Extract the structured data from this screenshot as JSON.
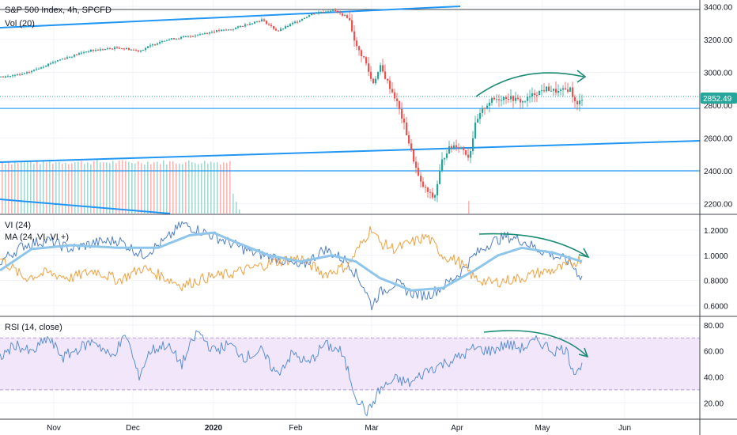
{
  "legend": {
    "main": "S&P 500 Index, 4h, SPCFD",
    "vol": "Vol (20)",
    "vi": "VI (24)",
    "ma": "MA (24, VI, VI +)",
    "rsi": "RSI (14, close)"
  },
  "last_price": "2852.49",
  "colors": {
    "up": "#26a69a",
    "down": "#ef5350",
    "trendline": "#2196f3",
    "annotation": "#1b8a73",
    "vi_plus": "#4f7fd0",
    "vi_minus": "#f2a03d",
    "ma": "#8ec5ea",
    "rsi": "#5b8fd6",
    "rsi_band": "#f2e6fb",
    "price_tag": "#26a69a"
  },
  "chart_data": [
    {
      "type": "candlestick",
      "name": "price",
      "ylim": [
        2140,
        3440
      ],
      "ticks": [
        "3400.00",
        "3200.00",
        "3000.00",
        "2800.00",
        "2600.00",
        "2400.00",
        "2200.00"
      ],
      "tick_values": [
        3400,
        3200,
        3000,
        2800,
        2600,
        2400,
        2200
      ],
      "x_labels": [
        "Nov",
        "Dec",
        "2020",
        "Feb",
        "Mar",
        "Apr",
        "May",
        "Jun"
      ],
      "anchors": [
        [
          0,
          2970
        ],
        [
          30,
          2990
        ],
        [
          70,
          3070
        ],
        [
          110,
          3130
        ],
        [
          150,
          3150
        ],
        [
          175,
          3130
        ],
        [
          205,
          3195
        ],
        [
          240,
          3220
        ],
        [
          270,
          3250
        ],
        [
          290,
          3260
        ],
        [
          310,
          3290
        ],
        [
          330,
          3320
        ],
        [
          350,
          3250
        ],
        [
          370,
          3300
        ],
        [
          395,
          3360
        ],
        [
          420,
          3380
        ],
        [
          440,
          3330
        ],
        [
          450,
          3150
        ],
        [
          460,
          3080
        ],
        [
          470,
          2930
        ],
        [
          480,
          3030
        ],
        [
          490,
          2930
        ],
        [
          500,
          2830
        ],
        [
          510,
          2680
        ],
        [
          520,
          2500
        ],
        [
          530,
          2330
        ],
        [
          540,
          2270
        ],
        [
          548,
          2230
        ],
        [
          558,
          2460
        ],
        [
          565,
          2530
        ],
        [
          575,
          2560
        ],
        [
          585,
          2530
        ],
        [
          592,
          2480
        ],
        [
          600,
          2680
        ],
        [
          610,
          2780
        ],
        [
          620,
          2830
        ],
        [
          640,
          2850
        ],
        [
          660,
          2820
        ],
        [
          675,
          2870
        ],
        [
          690,
          2900
        ],
        [
          705,
          2880
        ],
        [
          720,
          2900
        ],
        [
          728,
          2790
        ],
        [
          736,
          2852
        ]
      ],
      "volume_bars": {
        "ylim": [
          0,
          30
        ],
        "profile": [
          [
            0,
            22
          ],
          [
            290,
            22
          ],
          [
            300,
            4
          ]
        ]
      }
    },
    {
      "type": "line",
      "name": "vortex-indicator",
      "ylim": [
        0.52,
        1.32
      ],
      "ticks": [
        "1.2000",
        "1.0000",
        "0.8000",
        "0.6000"
      ],
      "tick_values": [
        1.2,
        1.0,
        0.8,
        0.6
      ],
      "series": [
        {
          "key": "vi_plus",
          "anchors": [
            [
              0,
              0.95
            ],
            [
              30,
              1.08
            ],
            [
              60,
              1.12
            ],
            [
              90,
              1.05
            ],
            [
              120,
              1.1
            ],
            [
              150,
              1.12
            ],
            [
              180,
              1.0
            ],
            [
              210,
              1.12
            ],
            [
              230,
              1.25
            ],
            [
              260,
              1.18
            ],
            [
              290,
              1.1
            ],
            [
              320,
              1.02
            ],
            [
              350,
              0.98
            ],
            [
              380,
              0.9
            ],
            [
              410,
              1.05
            ],
            [
              440,
              0.95
            ],
            [
              460,
              0.75
            ],
            [
              470,
              0.6
            ],
            [
              480,
              0.7
            ],
            [
              500,
              0.78
            ],
            [
              520,
              0.7
            ],
            [
              540,
              0.68
            ],
            [
              560,
              0.75
            ],
            [
              580,
              0.85
            ],
            [
              600,
              1.0
            ],
            [
              620,
              1.1
            ],
            [
              640,
              1.15
            ],
            [
              660,
              1.12
            ],
            [
              680,
              1.05
            ],
            [
              700,
              1.0
            ],
            [
              720,
              0.95
            ],
            [
              736,
              0.82
            ]
          ]
        },
        {
          "key": "vi_minus",
          "anchors": [
            [
              0,
              0.98
            ],
            [
              30,
              0.82
            ],
            [
              60,
              0.86
            ],
            [
              90,
              0.82
            ],
            [
              120,
              0.88
            ],
            [
              150,
              0.8
            ],
            [
              180,
              0.9
            ],
            [
              210,
              0.82
            ],
            [
              230,
              0.76
            ],
            [
              260,
              0.82
            ],
            [
              290,
              0.85
            ],
            [
              320,
              0.9
            ],
            [
              350,
              0.95
            ],
            [
              380,
              0.98
            ],
            [
              410,
              0.85
            ],
            [
              440,
              0.92
            ],
            [
              460,
              1.12
            ],
            [
              470,
              1.22
            ],
            [
              480,
              1.1
            ],
            [
              500,
              1.05
            ],
            [
              520,
              1.1
            ],
            [
              540,
              1.15
            ],
            [
              560,
              1.0
            ],
            [
              580,
              0.95
            ],
            [
              600,
              0.82
            ],
            [
              620,
              0.78
            ],
            [
              640,
              0.8
            ],
            [
              660,
              0.82
            ],
            [
              680,
              0.86
            ],
            [
              700,
              0.88
            ],
            [
              720,
              0.92
            ],
            [
              736,
              0.98
            ]
          ]
        },
        {
          "key": "ma",
          "anchors": [
            [
              0,
              0.88
            ],
            [
              40,
              1.05
            ],
            [
              90,
              1.08
            ],
            [
              150,
              1.06
            ],
            [
              200,
              1.06
            ],
            [
              240,
              1.16
            ],
            [
              270,
              1.18
            ],
            [
              300,
              1.1
            ],
            [
              340,
              1.0
            ],
            [
              380,
              0.95
            ],
            [
              420,
              1.0
            ],
            [
              450,
              0.95
            ],
            [
              480,
              0.82
            ],
            [
              520,
              0.72
            ],
            [
              560,
              0.74
            ],
            [
              600,
              0.88
            ],
            [
              630,
              1.0
            ],
            [
              660,
              1.06
            ],
            [
              700,
              1.02
            ],
            [
              736,
              0.95
            ]
          ]
        }
      ]
    },
    {
      "type": "line",
      "name": "rsi",
      "ylim": [
        8,
        86
      ],
      "band": [
        30,
        70
      ],
      "ticks": [
        "80.00",
        "60.00",
        "40.00",
        "20.00"
      ],
      "tick_values": [
        80,
        60,
        40,
        20
      ],
      "series": [
        {
          "key": "rsi",
          "anchors": [
            [
              0,
              55
            ],
            [
              20,
              65
            ],
            [
              40,
              58
            ],
            [
              60,
              70
            ],
            [
              80,
              55
            ],
            [
              100,
              62
            ],
            [
              120,
              68
            ],
            [
              140,
              55
            ],
            [
              160,
              72
            ],
            [
              175,
              40
            ],
            [
              190,
              60
            ],
            [
              210,
              65
            ],
            [
              230,
              50
            ],
            [
              250,
              75
            ],
            [
              270,
              60
            ],
            [
              290,
              65
            ],
            [
              310,
              55
            ],
            [
              330,
              60
            ],
            [
              350,
              42
            ],
            [
              370,
              58
            ],
            [
              390,
              50
            ],
            [
              410,
              65
            ],
            [
              430,
              60
            ],
            [
              440,
              45
            ],
            [
              450,
              25
            ],
            [
              465,
              12
            ],
            [
              480,
              30
            ],
            [
              500,
              38
            ],
            [
              520,
              35
            ],
            [
              540,
              45
            ],
            [
              560,
              50
            ],
            [
              580,
              55
            ],
            [
              600,
              62
            ],
            [
              620,
              60
            ],
            [
              640,
              65
            ],
            [
              660,
              62
            ],
            [
              680,
              68
            ],
            [
              700,
              60
            ],
            [
              715,
              62
            ],
            [
              725,
              45
            ],
            [
              736,
              48
            ]
          ]
        }
      ]
    }
  ]
}
